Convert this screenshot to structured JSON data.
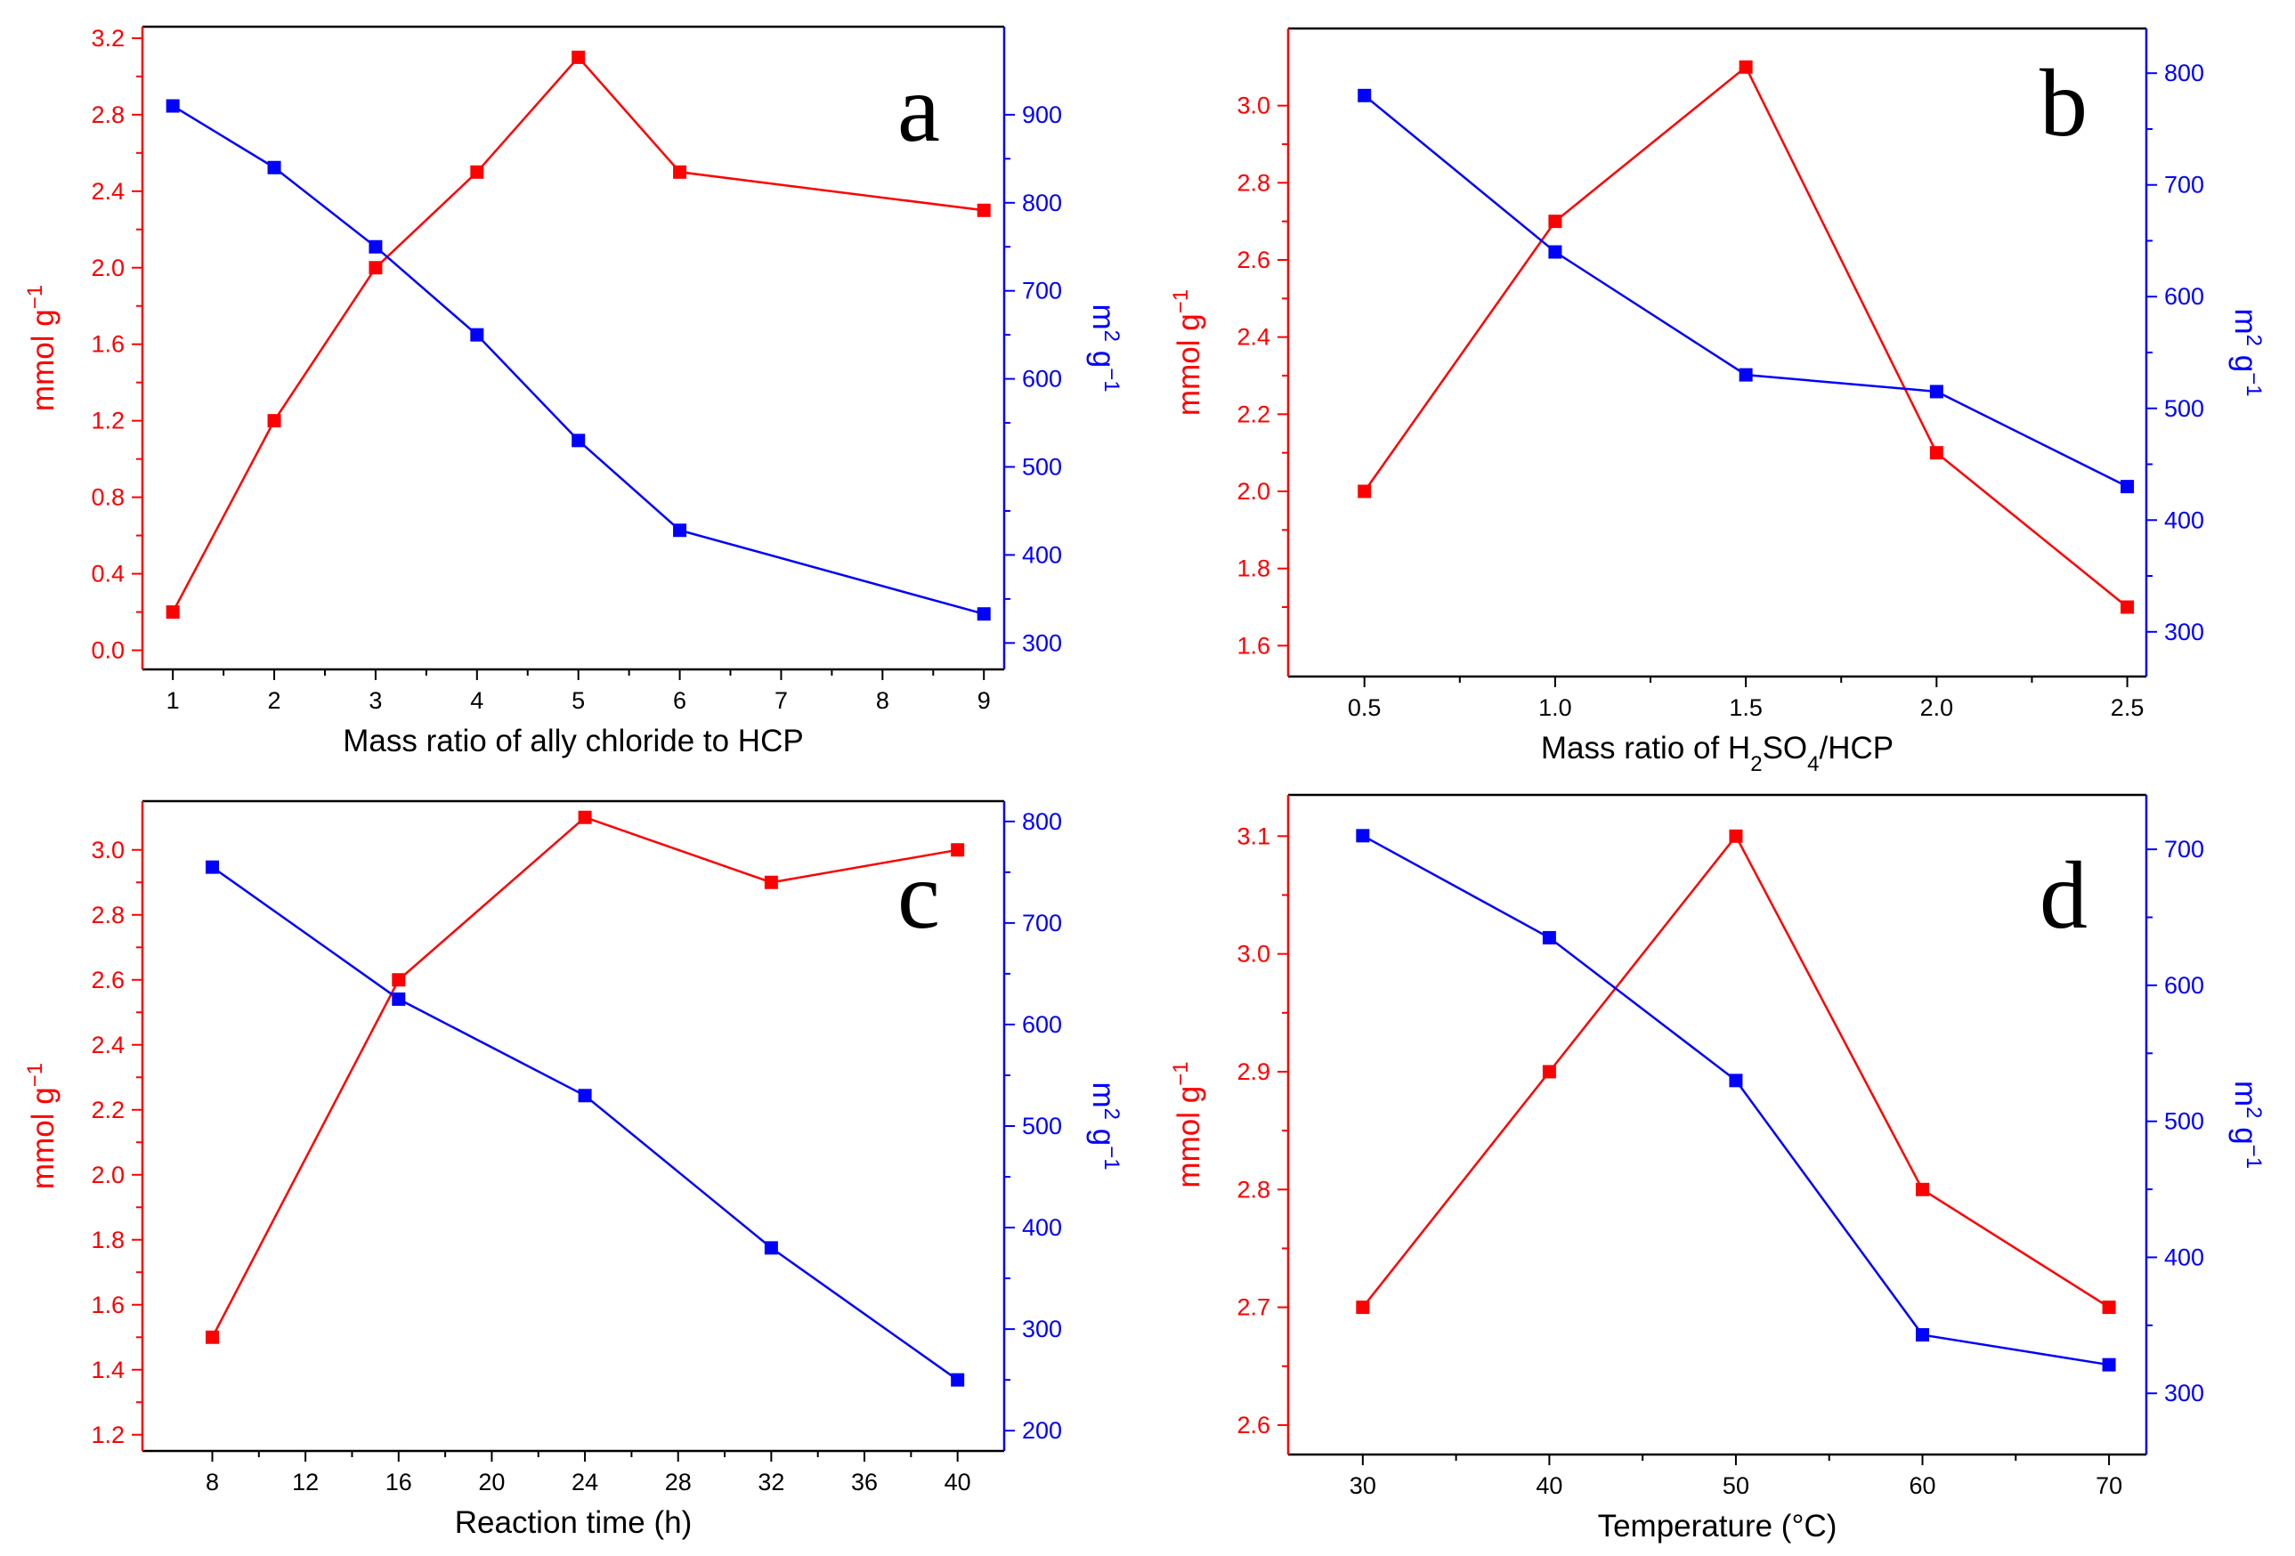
{
  "colors": {
    "left_axis": "#ff0000",
    "right_axis": "#0000ff",
    "frame": "#000000",
    "background": "#ffffff"
  },
  "chart_data": [
    {
      "type": "line",
      "panel_label": "a",
      "xlabel": "Mass ratio of ally chloride to HCP",
      "ylabel_left": "mmol g−1",
      "ylabel_right": "m2 g−1",
      "xlim": [
        0.7,
        9.2
      ],
      "ylim_left": [
        -0.1,
        3.26
      ],
      "ylim_right": [
        270,
        1000
      ],
      "x_ticks": [
        1,
        2,
        3,
        4,
        5,
        6,
        7,
        8,
        9
      ],
      "x_tick_labels": [
        "1",
        "2",
        "3",
        "4",
        "5",
        "6",
        "7",
        "8",
        "9"
      ],
      "y_left_ticks": [
        0.0,
        0.4,
        0.8,
        1.2,
        1.6,
        2.0,
        2.4,
        2.8,
        3.2
      ],
      "y_left_tick_labels": [
        "0.0",
        "0.4",
        "0.8",
        "1.2",
        "1.6",
        "2.0",
        "2.4",
        "2.8",
        "3.2"
      ],
      "y_right_ticks": [
        300,
        400,
        500,
        600,
        700,
        800,
        900
      ],
      "y_right_tick_labels": [
        "300",
        "400",
        "500",
        "600",
        "700",
        "800",
        "900"
      ],
      "series": [
        {
          "name": "mmol g−1",
          "axis": "left",
          "color": "#ff0000",
          "x": [
            1,
            2,
            3,
            4,
            5,
            6,
            9
          ],
          "values": [
            0.2,
            1.2,
            2.0,
            2.5,
            3.1,
            2.5,
            2.3
          ]
        },
        {
          "name": "m2 g−1",
          "axis": "right",
          "color": "#0000ff",
          "x": [
            1,
            2,
            3,
            4,
            5,
            6,
            9
          ],
          "values": [
            910,
            840,
            750,
            650,
            530,
            428,
            333
          ]
        }
      ]
    },
    {
      "type": "line",
      "panel_label": "b",
      "xlabel_parts": [
        "Mass ratio of H",
        "2",
        "SO",
        "4",
        "/HCP"
      ],
      "ylabel_left": "mmol g−1",
      "ylabel_right": "m2 g−1",
      "xlim": [
        0.3,
        2.55
      ],
      "ylim_left": [
        1.52,
        3.2
      ],
      "ylim_right": [
        260,
        840
      ],
      "x_ticks": [
        0.5,
        1.0,
        1.5,
        2.0,
        2.5
      ],
      "x_tick_labels": [
        "0.5",
        "1.0",
        "1.5",
        "2.0",
        "2.5"
      ],
      "y_left_ticks": [
        1.6,
        1.8,
        2.0,
        2.2,
        2.4,
        2.6,
        2.8,
        3.0
      ],
      "y_left_tick_labels": [
        "1.6",
        "1.8",
        "2.0",
        "2.2",
        "2.4",
        "2.6",
        "2.8",
        "3.0"
      ],
      "y_right_ticks": [
        300,
        400,
        500,
        600,
        700,
        800
      ],
      "y_right_tick_labels": [
        "300",
        "400",
        "500",
        "600",
        "700",
        "800"
      ],
      "series": [
        {
          "name": "mmol g−1",
          "axis": "left",
          "color": "#ff0000",
          "x": [
            0.5,
            1.0,
            1.5,
            2.0,
            2.5
          ],
          "values": [
            2.0,
            2.7,
            3.1,
            2.1,
            1.7
          ]
        },
        {
          "name": "m2 g−1",
          "axis": "right",
          "color": "#0000ff",
          "x": [
            0.5,
            1.0,
            1.5,
            2.0,
            2.5
          ],
          "values": [
            780,
            640,
            530,
            515,
            430
          ]
        }
      ]
    },
    {
      "type": "line",
      "panel_label": "c",
      "xlabel": "Reaction time (h)",
      "ylabel_left": "mmol g−1",
      "ylabel_right": "m2 g−1",
      "xlim": [
        5,
        42
      ],
      "ylim_left": [
        1.15,
        3.15
      ],
      "ylim_right": [
        180,
        820
      ],
      "x_ticks": [
        8,
        12,
        16,
        20,
        24,
        28,
        32,
        36,
        40
      ],
      "x_tick_labels": [
        "8",
        "12",
        "16",
        "20",
        "24",
        "28",
        "32",
        "36",
        "40"
      ],
      "y_left_ticks": [
        1.2,
        1.4,
        1.6,
        1.8,
        2.0,
        2.2,
        2.4,
        2.6,
        2.8,
        3.0
      ],
      "y_left_tick_labels": [
        "1.2",
        "1.4",
        "1.6",
        "1.8",
        "2.0",
        "2.2",
        "2.4",
        "2.6",
        "2.8",
        "3.0"
      ],
      "y_right_ticks": [
        200,
        300,
        400,
        500,
        600,
        700,
        800
      ],
      "y_right_tick_labels": [
        "200",
        "300",
        "400",
        "500",
        "600",
        "700",
        "800"
      ],
      "series": [
        {
          "name": "mmol g−1",
          "axis": "left",
          "color": "#ff0000",
          "x": [
            8,
            16,
            24,
            32,
            40
          ],
          "values": [
            1.5,
            2.6,
            3.1,
            2.9,
            3.0
          ]
        },
        {
          "name": "m2 g−1",
          "axis": "right",
          "color": "#0000ff",
          "x": [
            8,
            16,
            24,
            32,
            40
          ],
          "values": [
            755,
            625,
            530,
            380,
            250
          ]
        }
      ]
    },
    {
      "type": "line",
      "panel_label": "d",
      "xlabel": "Temperature (°C)",
      "ylabel_left": "mmol g−1",
      "ylabel_right": "m2 g−1",
      "xlim": [
        26,
        72
      ],
      "ylim_left": [
        2.575,
        3.135
      ],
      "ylim_right": [
        255,
        740
      ],
      "x_ticks": [
        30,
        40,
        50,
        60,
        70
      ],
      "x_tick_labels": [
        "30",
        "40",
        "50",
        "60",
        "70"
      ],
      "y_left_ticks": [
        2.6,
        2.7,
        2.8,
        2.9,
        3.0,
        3.1
      ],
      "y_left_tick_labels": [
        "2.6",
        "2.7",
        "2.8",
        "2.9",
        "3.0",
        "3.1"
      ],
      "y_right_ticks": [
        300,
        400,
        500,
        600,
        700
      ],
      "y_right_tick_labels": [
        "300",
        "400",
        "500",
        "600",
        "700"
      ],
      "series": [
        {
          "name": "mmol g−1",
          "axis": "left",
          "color": "#ff0000",
          "x": [
            30,
            40,
            50,
            60,
            70
          ],
          "values": [
            2.7,
            2.9,
            3.1,
            2.8,
            2.7
          ]
        },
        {
          "name": "m2 g−1",
          "axis": "right",
          "color": "#0000ff",
          "x": [
            30,
            40,
            50,
            60,
            70
          ],
          "values": [
            710,
            635,
            530,
            343,
            321
          ]
        }
      ]
    }
  ]
}
